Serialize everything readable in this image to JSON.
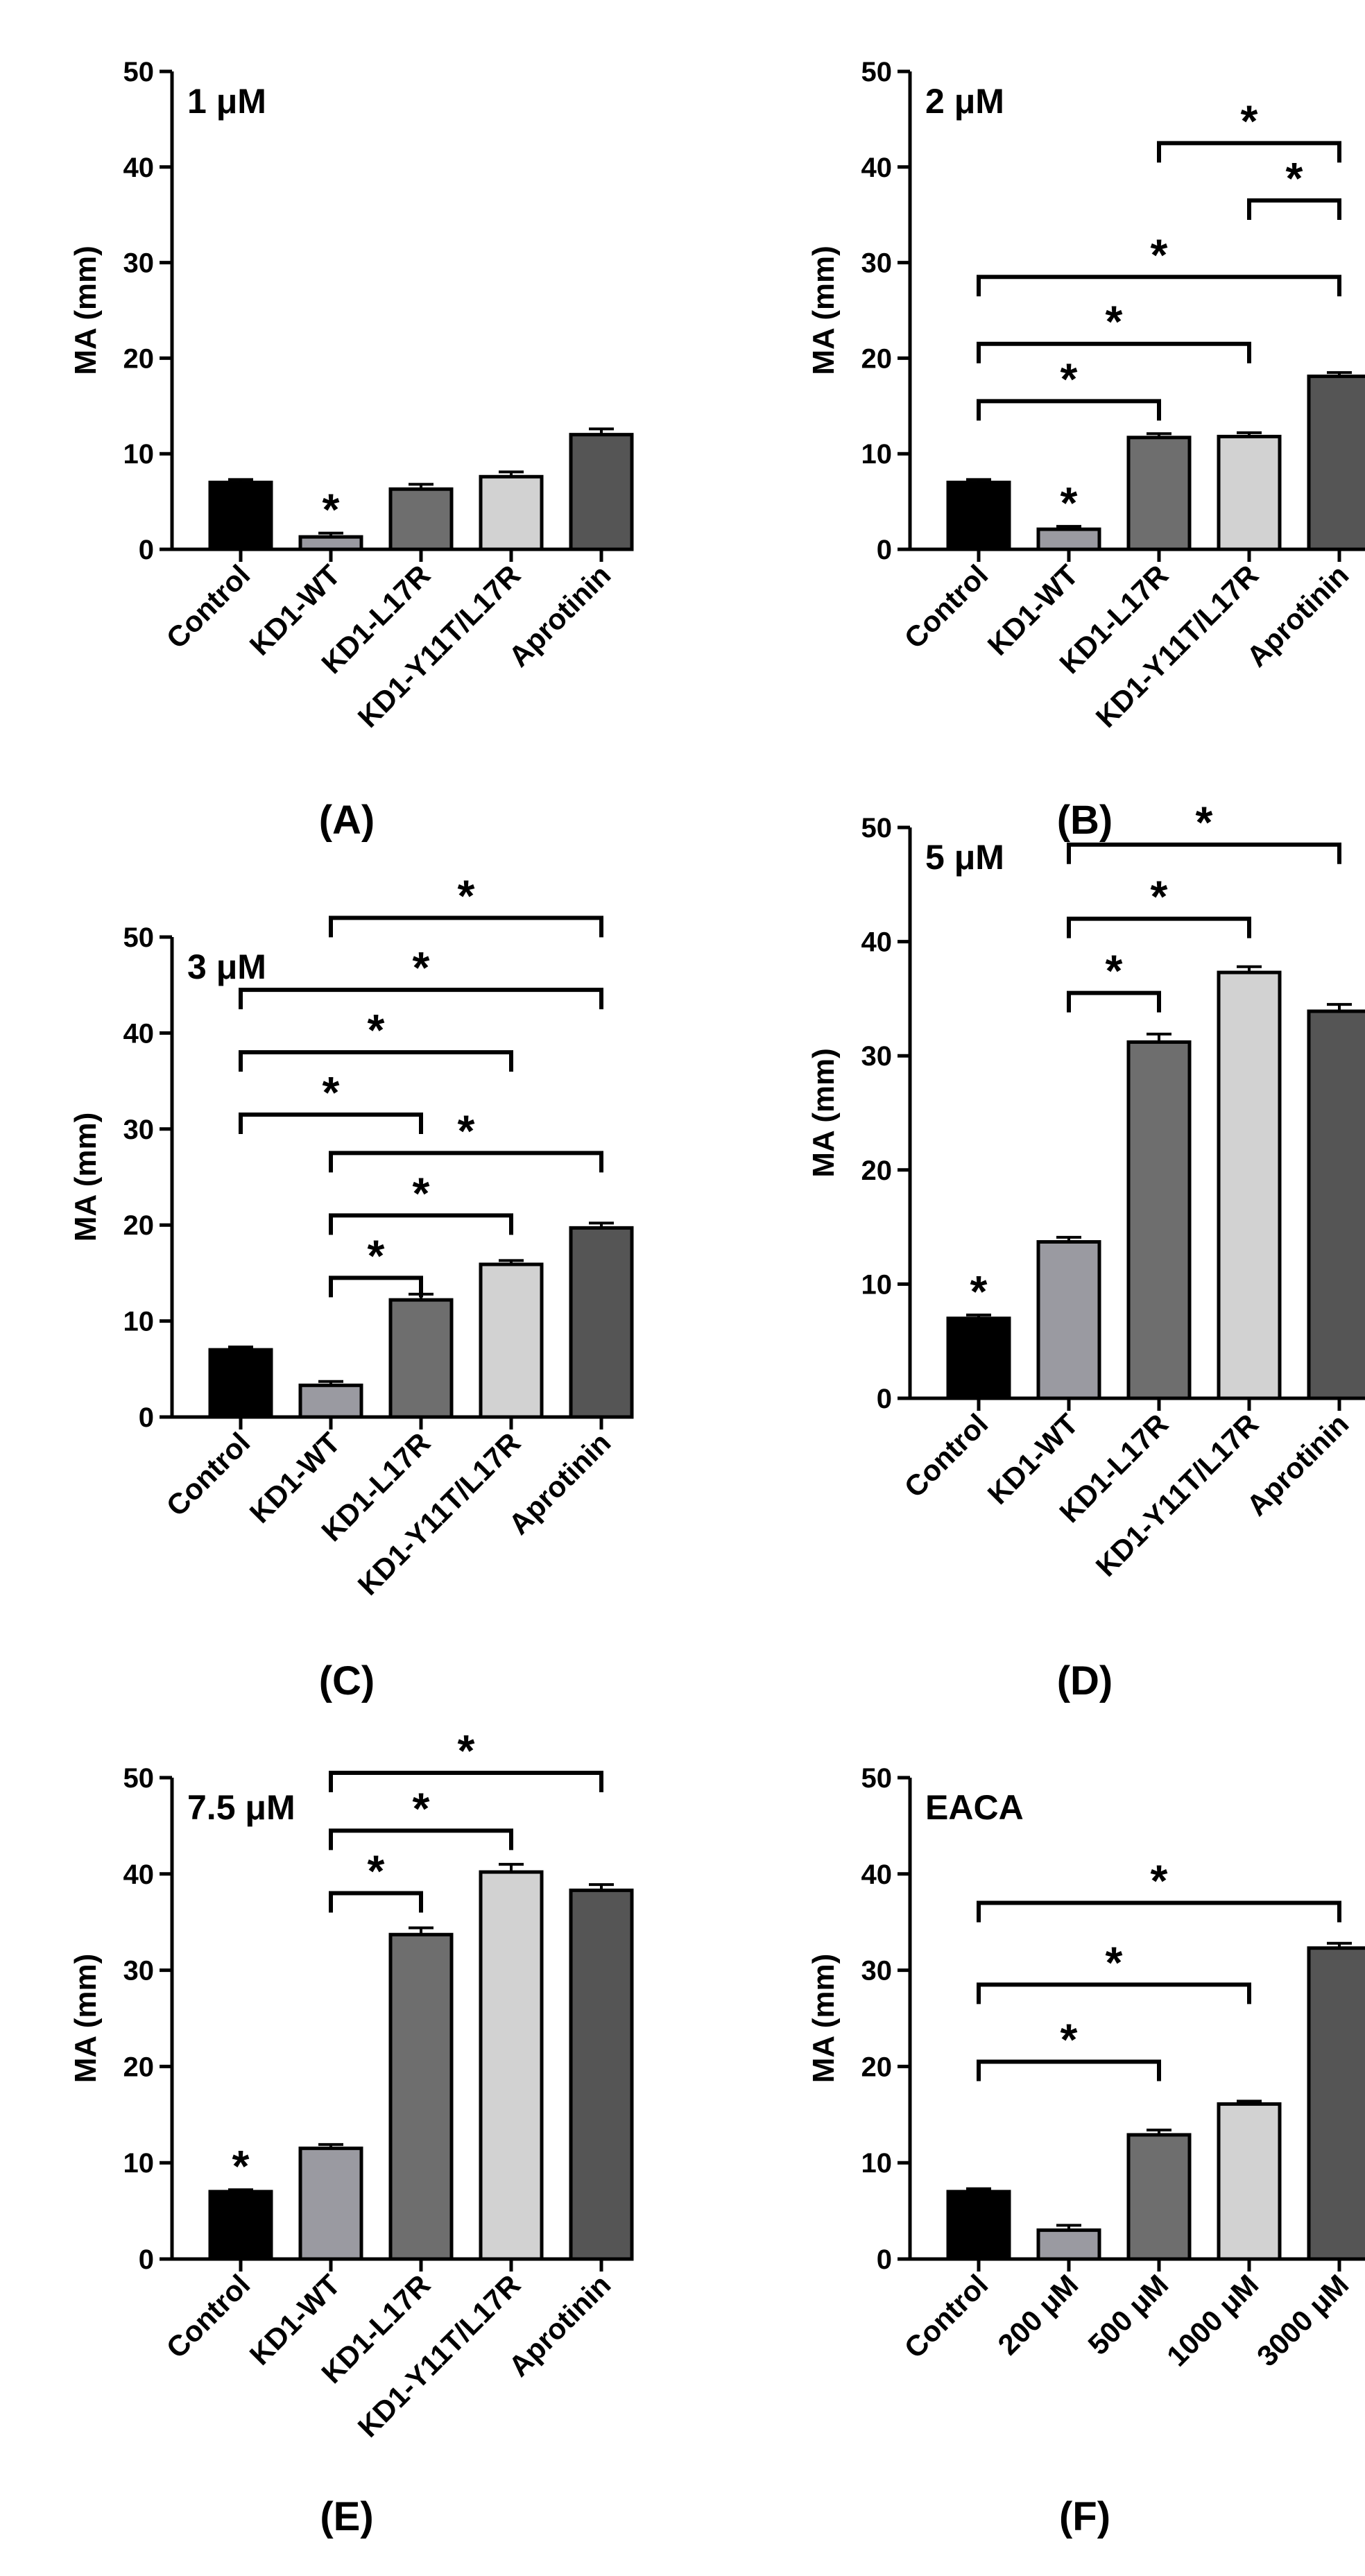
{
  "chart_data": [
    {
      "panel_label": "(A)",
      "title": "1 μM",
      "type": "bar",
      "ylabel": "MA (mm)",
      "ylim": [
        0,
        50
      ],
      "yticks": [
        "0",
        "10",
        "20",
        "30",
        "40",
        "50"
      ],
      "categories": [
        "Control",
        "KD1-WT",
        "KD1-L17R",
        "KD1-Y11T/L17R",
        "Aprotinin"
      ],
      "values": [
        7.0,
        1.3,
        6.3,
        7.6,
        12.0
      ],
      "errors": [
        0.3,
        0.4,
        0.5,
        0.5,
        0.6
      ],
      "bar_colors": [
        "#000000",
        "#9a9aa1",
        "#6e6e6e",
        "#d2d2d2",
        "#555555"
      ],
      "bar_stars": [
        "",
        "*",
        "",
        "",
        ""
      ],
      "brackets": []
    },
    {
      "panel_label": "(B)",
      "title": "2 μM",
      "type": "bar",
      "ylabel": "MA (mm)",
      "ylim": [
        0,
        50
      ],
      "yticks": [
        "0",
        "10",
        "20",
        "30",
        "40",
        "50"
      ],
      "categories": [
        "Control",
        "KD1-WT",
        "KD1-L17R",
        "KD1-Y11T/L17R",
        "Aprotinin"
      ],
      "values": [
        7.0,
        2.1,
        11.7,
        11.8,
        18.1
      ],
      "errors": [
        0.3,
        0.3,
        0.4,
        0.4,
        0.4
      ],
      "bar_colors": [
        "#000000",
        "#9a9aa1",
        "#6e6e6e",
        "#d2d2d2",
        "#555555"
      ],
      "bar_stars": [
        "",
        "*",
        "",
        "",
        ""
      ],
      "brackets": [
        {
          "from": 2,
          "to": 4,
          "y": 42.5,
          "label": "*"
        },
        {
          "from": 3,
          "to": 4,
          "y": 36.5,
          "label": "*"
        },
        {
          "from": 0,
          "to": 4,
          "y": 28.5,
          "label": "*"
        },
        {
          "from": 0,
          "to": 3,
          "y": 21.5,
          "label": "*"
        },
        {
          "from": 0,
          "to": 2,
          "y": 15.5,
          "label": "*"
        }
      ]
    },
    {
      "panel_label": "(C)",
      "title": "3 μM",
      "type": "bar",
      "ylabel": "MA (mm)",
      "ylim": [
        0,
        50
      ],
      "yticks": [
        "0",
        "10",
        "20",
        "30",
        "40",
        "50"
      ],
      "categories": [
        "Control",
        "KD1-WT",
        "KD1-L17R",
        "KD1-Y11T/L17R",
        "Aprotinin"
      ],
      "values": [
        7.0,
        3.3,
        12.2,
        15.9,
        19.7
      ],
      "errors": [
        0.3,
        0.4,
        0.6,
        0.4,
        0.5
      ],
      "bar_colors": [
        "#000000",
        "#9a9aa1",
        "#6e6e6e",
        "#d2d2d2",
        "#555555"
      ],
      "bar_stars": [
        "",
        "",
        "",
        "",
        ""
      ],
      "brackets": [
        {
          "from": 1,
          "to": 4,
          "y": 52.0,
          "label": "*"
        },
        {
          "from": 0,
          "to": 4,
          "y": 44.5,
          "label": "*"
        },
        {
          "from": 0,
          "to": 3,
          "y": 38.0,
          "label": "*"
        },
        {
          "from": 0,
          "to": 2,
          "y": 31.5,
          "label": "*"
        },
        {
          "from": 1,
          "to": 4,
          "y": 27.5,
          "label": "*"
        },
        {
          "from": 1,
          "to": 3,
          "y": 21.0,
          "label": "*"
        },
        {
          "from": 1,
          "to": 2,
          "y": 14.5,
          "label": "*"
        }
      ]
    },
    {
      "panel_label": "(D)",
      "title": "5 μM",
      "type": "bar",
      "ylabel": "MA (mm)",
      "ylim": [
        0,
        50
      ],
      "yticks": [
        "0",
        "10",
        "20",
        "30",
        "40",
        "50"
      ],
      "categories": [
        "Control",
        "KD1-WT",
        "KD1-L17R",
        "KD1-Y11T/L17R",
        "Aprotinin"
      ],
      "values": [
        7.0,
        13.7,
        31.2,
        37.3,
        33.9
      ],
      "errors": [
        0.3,
        0.4,
        0.7,
        0.5,
        0.6
      ],
      "bar_colors": [
        "#000000",
        "#9a9aa1",
        "#6e6e6e",
        "#d2d2d2",
        "#555555"
      ],
      "bar_stars": [
        "*",
        "",
        "",
        "",
        ""
      ],
      "brackets": [
        {
          "from": 1,
          "to": 4,
          "y": 48.5,
          "label": "*"
        },
        {
          "from": 1,
          "to": 3,
          "y": 42.0,
          "label": "*"
        },
        {
          "from": 1,
          "to": 2,
          "y": 35.5,
          "label": "*"
        }
      ]
    },
    {
      "panel_label": "(E)",
      "title": "7.5 μM",
      "type": "bar",
      "ylabel": "MA (mm)",
      "ylim": [
        0,
        50
      ],
      "yticks": [
        "0",
        "10",
        "20",
        "30",
        "40",
        "50"
      ],
      "categories": [
        "Control",
        "KD1-WT",
        "KD1-L17R",
        "KD1-Y11T/L17R",
        "Aprotinin"
      ],
      "values": [
        7.0,
        11.5,
        33.7,
        40.2,
        38.3
      ],
      "errors": [
        0.2,
        0.4,
        0.7,
        0.8,
        0.6
      ],
      "bar_colors": [
        "#000000",
        "#9a9aa1",
        "#6e6e6e",
        "#d2d2d2",
        "#555555"
      ],
      "bar_stars": [
        "*",
        "",
        "",
        "",
        ""
      ],
      "brackets": [
        {
          "from": 1,
          "to": 4,
          "y": 50.5,
          "label": "*"
        },
        {
          "from": 1,
          "to": 3,
          "y": 44.5,
          "label": "*"
        },
        {
          "from": 1,
          "to": 2,
          "y": 38.0,
          "label": "*"
        }
      ]
    },
    {
      "panel_label": "(F)",
      "title": "EACA",
      "type": "bar",
      "ylabel": "MA (mm)",
      "ylim": [
        0,
        50
      ],
      "yticks": [
        "0",
        "10",
        "20",
        "30",
        "40",
        "50"
      ],
      "categories": [
        "Control",
        "200 μM",
        "500 μM",
        "1000 μM",
        "3000 μM"
      ],
      "values": [
        7.0,
        3.0,
        12.9,
        16.1,
        32.3
      ],
      "errors": [
        0.3,
        0.5,
        0.5,
        0.3,
        0.5
      ],
      "bar_colors": [
        "#000000",
        "#9a9aa1",
        "#6e6e6e",
        "#d2d2d2",
        "#555555"
      ],
      "bar_stars": [
        "",
        "",
        "",
        "",
        ""
      ],
      "brackets": [
        {
          "from": 0,
          "to": 4,
          "y": 37.0,
          "label": "*"
        },
        {
          "from": 0,
          "to": 3,
          "y": 28.5,
          "label": "*"
        },
        {
          "from": 0,
          "to": 2,
          "y": 20.5,
          "label": "*"
        }
      ]
    }
  ]
}
